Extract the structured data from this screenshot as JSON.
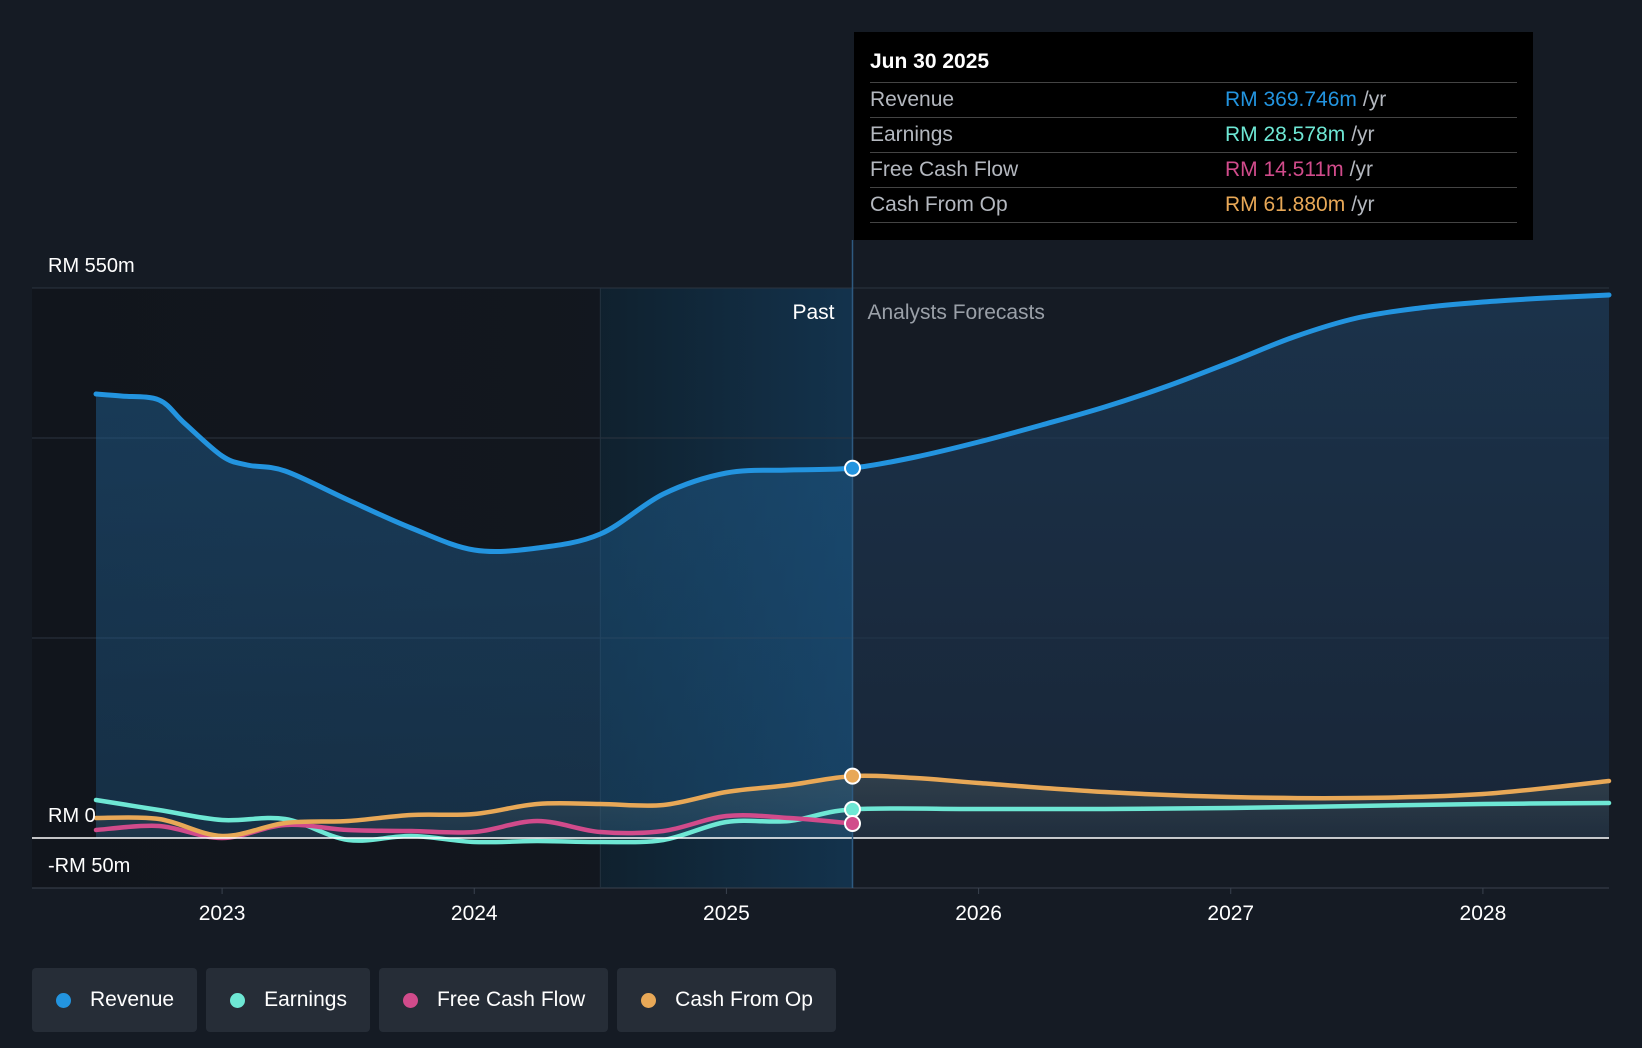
{
  "chart_data": {
    "type": "line",
    "title": "",
    "currency": "RM",
    "y_axis": {
      "max_label": "RM 550m",
      "zero_label": "RM 0",
      "min_label": "-RM 50m",
      "ylim": [
        -50,
        550
      ]
    },
    "x_ticks": [
      "2023",
      "2024",
      "2025",
      "2026",
      "2027",
      "2028"
    ],
    "x_range": [
      2022.5,
      2028.5
    ],
    "past_label": "Past",
    "forecast_label": "Analysts Forecasts",
    "divider_x": 2025.5,
    "highlight_start_x": 2024.5,
    "series": [
      {
        "name": "Revenue",
        "color": "#2394df",
        "points": [
          [
            2022.5,
            444
          ],
          [
            2022.6,
            442
          ],
          [
            2022.75,
            438
          ],
          [
            2022.85,
            415
          ],
          [
            2023.0,
            382
          ],
          [
            2023.1,
            373
          ],
          [
            2023.25,
            367
          ],
          [
            2023.5,
            338
          ],
          [
            2023.75,
            310
          ],
          [
            2024.0,
            288
          ],
          [
            2024.25,
            290
          ],
          [
            2024.5,
            304
          ],
          [
            2024.75,
            344
          ],
          [
            2025.0,
            365
          ],
          [
            2025.25,
            368
          ],
          [
            2025.5,
            370
          ],
          [
            2025.75,
            381
          ],
          [
            2026.0,
            396
          ],
          [
            2026.25,
            413
          ],
          [
            2026.5,
            431
          ],
          [
            2026.75,
            452
          ],
          [
            2027.0,
            476
          ],
          [
            2027.25,
            501
          ],
          [
            2027.5,
            520
          ],
          [
            2027.75,
            530
          ],
          [
            2028.0,
            536
          ],
          [
            2028.25,
            540
          ],
          [
            2028.5,
            543
          ]
        ]
      },
      {
        "name": "Earnings",
        "color": "#6ee7d4",
        "points": [
          [
            2022.5,
            38
          ],
          [
            2022.75,
            28
          ],
          [
            2023.0,
            18
          ],
          [
            2023.25,
            19
          ],
          [
            2023.5,
            -2
          ],
          [
            2023.75,
            2
          ],
          [
            2024.0,
            -4
          ],
          [
            2024.25,
            -3
          ],
          [
            2024.5,
            -4
          ],
          [
            2024.75,
            -2
          ],
          [
            2025.0,
            16
          ],
          [
            2025.25,
            17
          ],
          [
            2025.5,
            28.6
          ],
          [
            2026.0,
            29
          ],
          [
            2026.5,
            29
          ],
          [
            2027.0,
            30
          ],
          [
            2027.5,
            32
          ],
          [
            2028.0,
            34
          ],
          [
            2028.5,
            35
          ]
        ]
      },
      {
        "name": "Free Cash Flow",
        "color": "#d14b8b",
        "points": [
          [
            2022.5,
            8
          ],
          [
            2022.75,
            12
          ],
          [
            2023.0,
            0
          ],
          [
            2023.25,
            13
          ],
          [
            2023.5,
            8
          ],
          [
            2023.75,
            7
          ],
          [
            2024.0,
            6
          ],
          [
            2024.25,
            17
          ],
          [
            2024.5,
            6
          ],
          [
            2024.75,
            7
          ],
          [
            2025.0,
            22
          ],
          [
            2025.25,
            20
          ],
          [
            2025.5,
            14.5
          ]
        ]
      },
      {
        "name": "Cash From Op",
        "color": "#e8a857",
        "points": [
          [
            2022.5,
            20
          ],
          [
            2022.75,
            19
          ],
          [
            2023.0,
            2
          ],
          [
            2023.25,
            15
          ],
          [
            2023.5,
            17
          ],
          [
            2023.75,
            23
          ],
          [
            2024.0,
            24
          ],
          [
            2024.25,
            34
          ],
          [
            2024.5,
            34
          ],
          [
            2024.75,
            33
          ],
          [
            2025.0,
            46
          ],
          [
            2025.25,
            53
          ],
          [
            2025.5,
            61.9
          ],
          [
            2025.75,
            60
          ],
          [
            2026.0,
            55
          ],
          [
            2026.5,
            46
          ],
          [
            2027.0,
            41
          ],
          [
            2027.5,
            40
          ],
          [
            2028.0,
            44
          ],
          [
            2028.5,
            57
          ]
        ]
      }
    ],
    "tooltip": {
      "date": "Jun 30 2025",
      "rows": [
        {
          "name": "Revenue",
          "value": "RM 369.746m",
          "unit": "/yr",
          "color": "#2394df"
        },
        {
          "name": "Earnings",
          "value": "RM 28.578m",
          "unit": "/yr",
          "color": "#6ee7d4"
        },
        {
          "name": "Free Cash Flow",
          "value": "RM 14.511m",
          "unit": "/yr",
          "color": "#d14b8b"
        },
        {
          "name": "Cash From Op",
          "value": "RM 61.880m",
          "unit": "/yr",
          "color": "#e8a857"
        }
      ]
    },
    "markers": [
      {
        "series": "Revenue",
        "x": 2025.5,
        "y": 369.746
      },
      {
        "series": "Cash From Op",
        "x": 2025.5,
        "y": 61.88
      },
      {
        "series": "Earnings",
        "x": 2025.5,
        "y": 28.578
      },
      {
        "series": "Free Cash Flow",
        "x": 2025.5,
        "y": 14.511
      }
    ]
  },
  "legend": [
    {
      "name": "Revenue",
      "color": "#2394df"
    },
    {
      "name": "Earnings",
      "color": "#6ee7d4"
    },
    {
      "name": "Free Cash Flow",
      "color": "#d14b8b"
    },
    {
      "name": "Cash From Op",
      "color": "#e8a857"
    }
  ]
}
